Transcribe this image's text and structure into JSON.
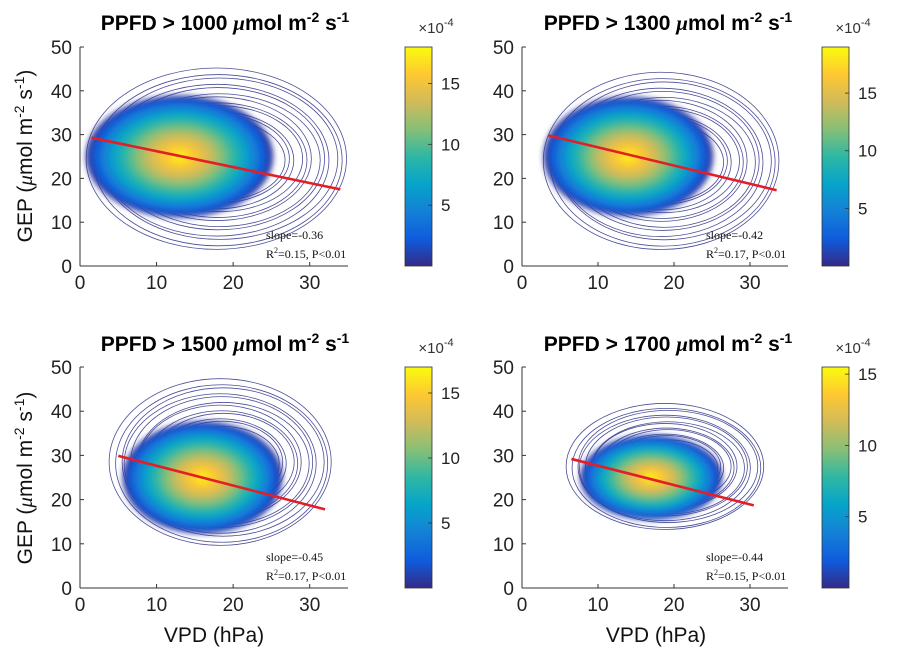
{
  "figure": {
    "ylabel": "GEP (",
    "ylabel_mu": "μ",
    "ylabel_unit": "mol m",
    "ylabel_sup1": "-2",
    "ylabel_s": " s",
    "ylabel_sup2": "-1",
    "ylabel_close": ")",
    "xlabel": "VPD (hPa)",
    "colorbar_exponent_base": "×10",
    "colorbar_exponent_power": "-4"
  },
  "chart_data": [
    {
      "type": "scatter",
      "subtype": "density-heatmap-with-contours",
      "title_prefix": "PPFD > 1000 ",
      "title_mu": "μ",
      "title_unit": "mol m",
      "title_sup1": "-2",
      "title_s": " s",
      "title_sup2": "-1",
      "xlim": [
        0,
        35
      ],
      "ylim": [
        0,
        50
      ],
      "xticks": [
        "0",
        "10",
        "20",
        "30"
      ],
      "yticks": [
        "0",
        "10",
        "20",
        "30",
        "40",
        "50"
      ],
      "density_center": [
        13,
        25
      ],
      "density_extent": [
        [
          1,
          35
        ],
        [
          2,
          47
        ]
      ],
      "fit_line": {
        "x": [
          1.5,
          34
        ],
        "y": [
          29.3,
          17.5
        ]
      },
      "slope_text": "slope=-0.36",
      "r2_prefix": "R",
      "r2_sup": "2",
      "r2_rest": "=0.15, P<0.01",
      "colorbar": {
        "range": [
          0,
          18
        ],
        "ticks": [
          "5",
          "10",
          "15"
        ]
      }
    },
    {
      "type": "scatter",
      "subtype": "density-heatmap-with-contours",
      "title_prefix": "PPFD > 1300 ",
      "title_mu": "μ",
      "title_unit": "mol m",
      "title_sup1": "-2",
      "title_s": " s",
      "title_sup2": "-1",
      "xlim": [
        0,
        35
      ],
      "ylim": [
        0,
        50
      ],
      "xticks": [
        "0",
        "10",
        "20",
        "30"
      ],
      "yticks": [
        "0",
        "10",
        "20",
        "30",
        "40",
        "50"
      ],
      "density_center": [
        14,
        25
      ],
      "density_extent": [
        [
          3,
          34
        ],
        [
          2,
          46
        ]
      ],
      "fit_line": {
        "x": [
          3.5,
          33.5
        ],
        "y": [
          29.8,
          17.3
        ]
      },
      "slope_text": "slope=-0.42",
      "r2_prefix": "R",
      "r2_sup": "2",
      "r2_rest": "=0.17, P<0.01",
      "colorbar": {
        "range": [
          0,
          19
        ],
        "ticks": [
          "5",
          "10",
          "15"
        ]
      }
    },
    {
      "type": "scatter",
      "subtype": "density-heatmap-with-contours",
      "title_prefix": "PPFD > 1500 ",
      "title_mu": "μ",
      "title_unit": "mol m",
      "title_sup1": "-2",
      "title_s": " s",
      "title_sup2": "-1",
      "xlim": [
        0,
        35
      ],
      "ylim": [
        0,
        50
      ],
      "xticks": [
        "0",
        "10",
        "20",
        "30"
      ],
      "yticks": [
        "0",
        "10",
        "20",
        "30",
        "40",
        "50"
      ],
      "density_center": [
        16,
        25
      ],
      "density_extent": [
        [
          4,
          33
        ],
        [
          8,
          49
        ]
      ],
      "fit_line": {
        "x": [
          5,
          32
        ],
        "y": [
          29.9,
          17.8
        ]
      },
      "slope_text": "slope=-0.45",
      "r2_prefix": "R",
      "r2_sup": "2",
      "r2_rest": "=0.17, P<0.01",
      "colorbar": {
        "range": [
          0,
          17
        ],
        "ticks": [
          "5",
          "10",
          "15"
        ]
      }
    },
    {
      "type": "scatter",
      "subtype": "density-heatmap-with-contours",
      "title_prefix": "PPFD > 1700 ",
      "title_mu": "μ",
      "title_unit": "mol m",
      "title_sup1": "-2",
      "title_s": " s",
      "title_sup2": "-1",
      "xlim": [
        0,
        35
      ],
      "ylim": [
        0,
        50
      ],
      "xticks": [
        "0",
        "10",
        "20",
        "30"
      ],
      "yticks": [
        "0",
        "10",
        "20",
        "30",
        "40",
        "50"
      ],
      "density_center": [
        17,
        25
      ],
      "density_extent": [
        [
          6,
          32
        ],
        [
          12,
          43
        ]
      ],
      "fit_line": {
        "x": [
          6.5,
          30.5
        ],
        "y": [
          29.2,
          18.7
        ]
      },
      "slope_text": "slope=-0.44",
      "r2_prefix": "R",
      "r2_sup": "2",
      "r2_rest": "=0.15, P<0.01",
      "colorbar": {
        "range": [
          0,
          15.5
        ],
        "ticks": [
          "5",
          "10",
          "15"
        ]
      }
    }
  ],
  "colors": {
    "fit_line": "#e41e26",
    "contour": "#2a2f86",
    "parula": [
      "#352a87",
      "#0f5cdd",
      "#1481d6",
      "#06a4ca",
      "#2eb7a4",
      "#87bf77",
      "#d1bb59",
      "#fec832",
      "#f9fb0e"
    ]
  }
}
